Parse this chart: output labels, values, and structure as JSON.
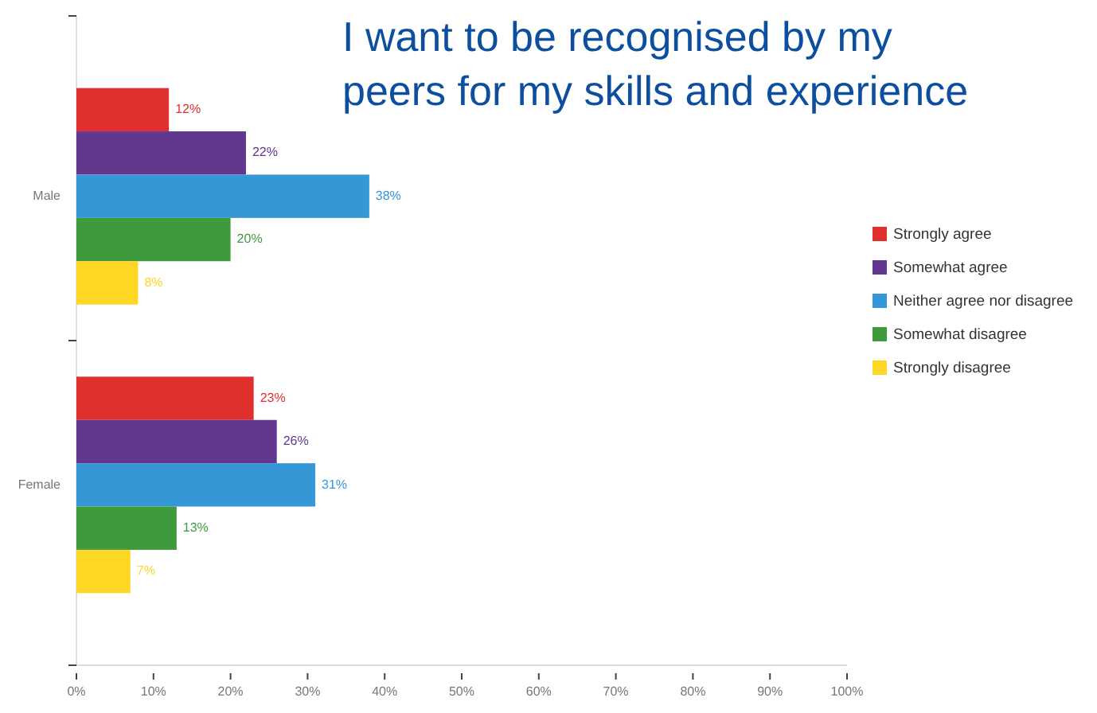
{
  "chart_data": {
    "type": "bar",
    "orientation": "horizontal",
    "title": "I want to be recognised by my peers for my skills and experience",
    "categories": [
      "Male",
      "Female"
    ],
    "series": [
      {
        "name": "Strongly agree",
        "color": "#e0302e",
        "values": [
          12,
          23
        ],
        "value_labels": [
          "12%",
          "23%"
        ]
      },
      {
        "name": "Somewhat agree",
        "color": "#62388e",
        "values": [
          22,
          26
        ],
        "value_labels": [
          "22%",
          "26%"
        ]
      },
      {
        "name": "Neither agree nor disagree",
        "color": "#3597d6",
        "values": [
          38,
          31
        ],
        "value_labels": [
          "38%",
          "31%"
        ]
      },
      {
        "name": "Somewhat disagree",
        "color": "#3f9a3d",
        "values": [
          20,
          13
        ],
        "value_labels": [
          "20%",
          "13%"
        ]
      },
      {
        "name": "Strongly disagree",
        "color": "#fdd724",
        "values": [
          8,
          7
        ],
        "value_labels": [
          "8%",
          "7%"
        ]
      }
    ],
    "xlim": [
      0,
      100
    ],
    "xticks": [
      {
        "value": 0,
        "label": "0%"
      },
      {
        "value": 10,
        "label": "10%"
      },
      {
        "value": 20,
        "label": "20%"
      },
      {
        "value": 30,
        "label": "30%"
      },
      {
        "value": 40,
        "label": "40%"
      },
      {
        "value": 50,
        "label": "50%"
      },
      {
        "value": 60,
        "label": "60%"
      },
      {
        "value": 70,
        "label": "70%"
      },
      {
        "value": 80,
        "label": "80%"
      },
      {
        "value": 90,
        "label": "90%"
      },
      {
        "value": 100,
        "label": "100%"
      }
    ],
    "grid": false,
    "legend": "right"
  }
}
